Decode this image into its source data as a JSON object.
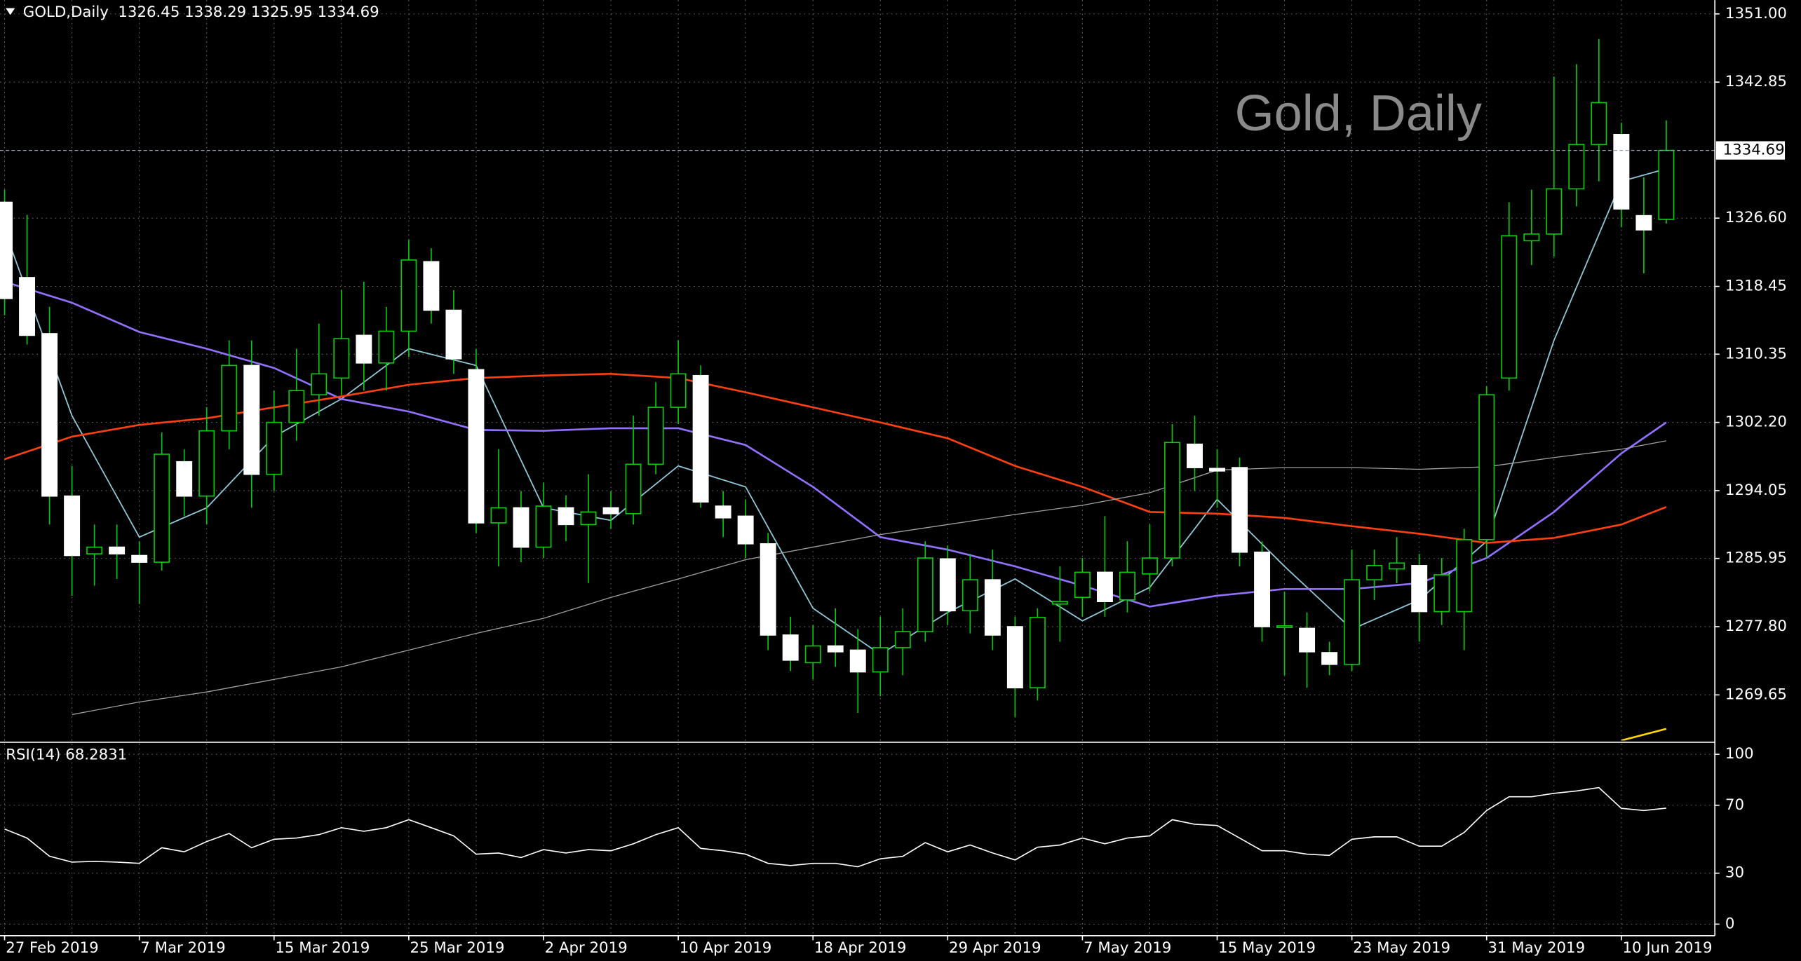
{
  "chart_data": [
    {
      "type": "candlestick",
      "title": "GOLD,Daily  1326.45 1338.29 1325.95 1334.69",
      "watermark": "Gold, Daily",
      "categories": [
        "27 Feb 2019",
        null,
        null,
        null,
        null,
        null,
        "7 Mar 2019",
        null,
        null,
        null,
        null,
        null,
        "15 Mar 2019",
        null,
        null,
        null,
        null,
        null,
        "25 Mar 2019",
        null,
        null,
        null,
        null,
        null,
        "2 Apr 2019",
        null,
        null,
        null,
        null,
        null,
        "10 Apr 2019",
        null,
        null,
        null,
        null,
        null,
        "18 Apr 2019",
        null,
        null,
        null,
        null,
        null,
        "29 Apr 2019",
        null,
        null,
        null,
        null,
        null,
        "7 May 2019",
        null,
        null,
        null,
        null,
        null,
        "15 May 2019",
        null,
        null,
        null,
        null,
        null,
        "23 May 2019",
        null,
        null,
        null,
        null,
        null,
        "31 May 2019",
        null,
        null,
        null,
        null,
        null,
        "10 Jun 2019",
        null,
        null
      ],
      "open": [
        1328.5,
        1319.5,
        1312.8,
        1293.4,
        1286.5,
        1287.3,
        1286.3,
        1285.5,
        1297.5,
        1293.4,
        1301.2,
        1309,
        1296,
        1302.2,
        1305.5,
        1307.5,
        1312.6,
        1309.3,
        1313.1,
        1321.4,
        1315.6,
        1308.5,
        1290.2,
        1292,
        1287.3,
        1292,
        1290,
        1292,
        1291.3,
        1297.2,
        1304,
        1307.8,
        1292.2,
        1291,
        1287.7,
        1276.8,
        1273.5,
        1275.5,
        1275,
        1272.4,
        1275.3,
        1277.2,
        1285.9,
        1279.7,
        1283.4,
        1277.8,
        1270.5,
        1280.5,
        1281.3,
        1284.3,
        1281,
        1284.1,
        1286,
        1299.6,
        1296.7,
        1296.8,
        1286.7,
        1277.7,
        1277.6,
        1274.7,
        1273.3,
        1283.4,
        1284.7,
        1285.1,
        1279.6,
        1279.6,
        1288.2,
        1307.5,
        1323.9,
        1324.7,
        1330.1,
        1335.4,
        1336.6,
        1326.9,
        1326.45
      ],
      "high": [
        1330,
        1327,
        1316,
        1297,
        1290,
        1290,
        1288,
        1301,
        1299,
        1304,
        1312,
        1312,
        1306,
        1311,
        1314,
        1318,
        1319,
        1316,
        1324,
        1323,
        1318,
        1311,
        1299,
        1294,
        1295,
        1293.5,
        1296,
        1294,
        1303,
        1307,
        1312,
        1309,
        1294,
        1293,
        1289,
        1279,
        1278,
        1280,
        1277.5,
        1279,
        1280,
        1288,
        1287.5,
        1286.5,
        1287,
        1279,
        1280,
        1285,
        1286,
        1291,
        1288,
        1290,
        1302,
        1303,
        1299,
        1298,
        1288,
        1282,
        1279.5,
        1276,
        1287,
        1287,
        1288.5,
        1286.5,
        1286,
        1289.5,
        1306.5,
        1328.5,
        1330,
        1343.5,
        1345,
        1348,
        1338,
        1331.5,
        1338.29
      ],
      "low": [
        1315,
        1311.5,
        1290,
        1281.5,
        1282.7,
        1283.5,
        1280.5,
        1284.5,
        1291,
        1290,
        1299,
        1292,
        1294,
        1300,
        1303,
        1305.5,
        1306,
        1306,
        1310,
        1314,
        1308,
        1289,
        1285,
        1285.5,
        1286,
        1288,
        1283,
        1289.5,
        1290,
        1296,
        1302,
        1292,
        1288.5,
        1286,
        1275,
        1272.5,
        1271.5,
        1273,
        1267.5,
        1269.5,
        1272,
        1276,
        1278,
        1277,
        1275,
        1267,
        1269,
        1276,
        1279,
        1279,
        1279.5,
        1282,
        1285,
        1294,
        1292,
        1285,
        1276,
        1272,
        1270.5,
        1272,
        1272.5,
        1281,
        1283,
        1276,
        1278,
        1275,
        1286,
        1306,
        1321,
        1322,
        1328,
        1331,
        1325.5,
        1320,
        1325.95
      ],
      "close": [
        1317,
        1312.6,
        1293.4,
        1286.3,
        1287.3,
        1286.5,
        1285.5,
        1298.4,
        1293.4,
        1301.2,
        1309,
        1296,
        1302.2,
        1306,
        1308,
        1312.2,
        1309.3,
        1313.1,
        1321.6,
        1315.6,
        1309.8,
        1290.2,
        1292,
        1287.3,
        1292.2,
        1290,
        1291.5,
        1291.3,
        1297.2,
        1304,
        1308,
        1292.7,
        1290.8,
        1287.7,
        1276.8,
        1273.8,
        1275.5,
        1274.8,
        1272.4,
        1275.3,
        1277.2,
        1286,
        1279.7,
        1283.4,
        1276.8,
        1270.5,
        1278.9,
        1280.8,
        1284.3,
        1280.8,
        1284.3,
        1286,
        1299.8,
        1296.8,
        1296.4,
        1286.7,
        1277.8,
        1277.9,
        1274.8,
        1273.3,
        1283.4,
        1285.1,
        1285.4,
        1279.6,
        1284,
        1288.2,
        1305.5,
        1324.5,
        1324.7,
        1330.1,
        1335.4,
        1340.4,
        1327.7,
        1325.2,
        1334.69
      ],
      "up_color": "#000000",
      "down_color": "#ffffff",
      "wick_color": "#00d000",
      "overlays": [
        {
          "color": "#8fc7d8",
          "x": [
            0,
            3,
            6,
            9,
            12,
            15,
            18,
            21,
            24,
            27,
            30,
            33,
            36,
            39,
            42,
            45,
            48,
            51,
            54,
            57,
            60,
            63,
            66,
            69,
            72,
            74
          ],
          "values": [
            1325.2,
            1303,
            1288.5,
            1292,
            1300.5,
            1305,
            1311,
            1309,
            1292,
            1290.5,
            1297,
            1294.5,
            1280,
            1274.5,
            1279.5,
            1283.5,
            1278.5,
            1282.5,
            1293,
            1285,
            1277.5,
            1281,
            1288,
            1312,
            1331,
            1332.5
          ]
        },
        {
          "color": "#9370ff",
          "x": [
            0,
            3,
            6,
            9,
            12,
            15,
            18,
            21,
            24,
            27,
            30,
            33,
            36,
            39,
            42,
            45,
            48,
            51,
            54,
            57,
            60,
            63,
            66,
            69,
            72,
            74
          ],
          "values": [
            1319,
            1316.5,
            1313,
            1311,
            1308.7,
            1305,
            1303.5,
            1301.3,
            1301.2,
            1301.5,
            1301.5,
            1299.5,
            1294.5,
            1288.5,
            1287,
            1285,
            1282.7,
            1280.2,
            1281.5,
            1282.3,
            1282.3,
            1283,
            1286,
            1291.5,
            1298.5,
            1302.2
          ]
        },
        {
          "color": "#ff4010",
          "x": [
            0,
            3,
            6,
            9,
            12,
            15,
            18,
            21,
            24,
            27,
            30,
            33,
            36,
            39,
            42,
            45,
            48,
            51,
            54,
            57,
            60,
            63,
            66,
            69,
            72,
            74
          ],
          "values": [
            1297.8,
            1300.5,
            1301.9,
            1302.7,
            1304,
            1305.3,
            1306.7,
            1307.5,
            1307.8,
            1308,
            1307.5,
            1305.8,
            1304,
            1302.2,
            1300.3,
            1297,
            1294.5,
            1291.5,
            1291.3,
            1290.8,
            1289.8,
            1288.9,
            1287.8,
            1288.4,
            1290,
            1292.1
          ]
        },
        {
          "color": "#a0a0a0",
          "x": [
            3,
            6,
            9,
            12,
            15,
            18,
            21,
            24,
            27,
            30,
            33,
            36,
            39,
            42,
            45,
            48,
            51,
            54,
            57,
            60,
            63,
            66,
            69,
            72,
            74
          ],
          "values": [
            1267.3,
            1268.8,
            1270,
            1271.5,
            1273,
            1275,
            1277,
            1278.8,
            1281.3,
            1283.5,
            1285.8,
            1287.3,
            1288.8,
            1290,
            1291.2,
            1292.3,
            1293.8,
            1296.5,
            1296.8,
            1296.8,
            1296.6,
            1296.9,
            1298,
            1299,
            1300
          ]
        },
        {
          "color": "#ffd700",
          "x": [
            72,
            74
          ],
          "values": [
            1264.2,
            1265.6
          ]
        }
      ],
      "ylim": [
        1264.2,
        1352.65
      ],
      "yticks": [
        {
          "value": 1351,
          "label": "1351.00"
        },
        1342.85,
        {
          "value": 1326.6,
          "label": "1326.60"
        },
        1318.45,
        1310.35,
        {
          "value": 1302.2,
          "label": "1302.20"
        },
        1294.05,
        1285.95,
        {
          "value": 1277.8,
          "label": "1277.80"
        },
        1269.65
      ],
      "grid": true
    },
    {
      "type": "line",
      "title": "RSI(14) 68.2831",
      "color": "#ffffff",
      "values": [
        56,
        50.7,
        40,
        36.5,
        37,
        36.5,
        35.8,
        45,
        42.6,
        48.6,
        53.4,
        45,
        50,
        50.7,
        52.7,
        56.8,
        54.7,
        56.8,
        61.5,
        56.8,
        52,
        41.2,
        41.9,
        39.2,
        43.9,
        41.9,
        43.9,
        43.2,
        47.3,
        52.7,
        56.8,
        44.6,
        43.2,
        41.2,
        35.8,
        34.5,
        35.8,
        35.8,
        33.8,
        38.5,
        39.9,
        48,
        42.6,
        46.6,
        41.9,
        37.8,
        45.3,
        46.6,
        50.7,
        47.3,
        50.7,
        52,
        61.5,
        58.8,
        58.1,
        50.7,
        43.2,
        43.2,
        41.2,
        40.5,
        50,
        51.4,
        51.4,
        45.9,
        45.9,
        54,
        66.9,
        75,
        75,
        77,
        78.4,
        80.4,
        68.2,
        66.9,
        68.2831
      ],
      "ylim": [
        -6.8,
        106.1
      ],
      "yticks": [
        100,
        70,
        30,
        0
      ],
      "grid": true
    }
  ]
}
